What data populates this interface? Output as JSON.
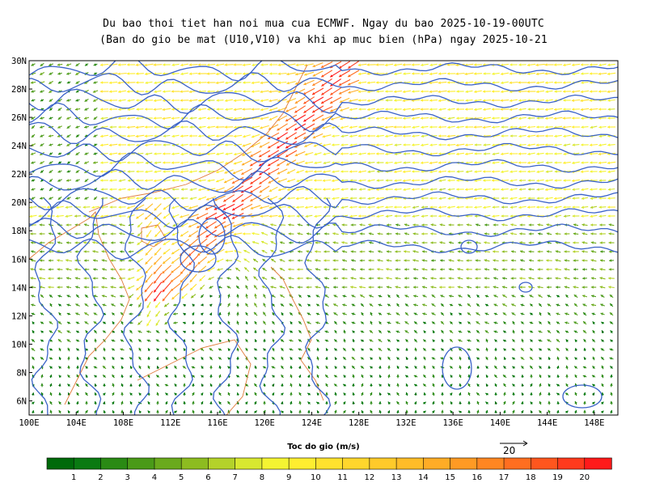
{
  "title_line1": "Du bao thoi tiet han noi mua cua ECMWF. Ngay du bao 2025-10-19-00UTC",
  "title_line2": "(Ban do gio be mat (U10,V10) va khi ap muc bien (hPa) ngay 2025-10-21",
  "map": {
    "lon_range": [
      100,
      150
    ],
    "lat_range": [
      5,
      30
    ],
    "lat_labels": [
      "30N",
      "28N",
      "26N",
      "24N",
      "22N",
      "20N",
      "18N",
      "16N",
      "14N",
      "12N",
      "10N",
      "8N",
      "6N"
    ],
    "lat_values": [
      30,
      28,
      26,
      24,
      22,
      20,
      18,
      16,
      14,
      12,
      10,
      8,
      6
    ],
    "lon_labels": [
      "100E",
      "104E",
      "108E",
      "112E",
      "116E",
      "120E",
      "124E",
      "128E",
      "132E",
      "136E",
      "140E",
      "144E",
      "148E"
    ],
    "lon_values": [
      100,
      104,
      108,
      112,
      116,
      120,
      124,
      128,
      132,
      136,
      140,
      144,
      148
    ],
    "isobar_color": "#3a62c8",
    "coast_color": "#e07a3a"
  },
  "legend": {
    "title": "Toc do gio (m/s)",
    "labels": [
      "1",
      "2",
      "3",
      "4",
      "5",
      "6",
      "7",
      "8",
      "9",
      "10",
      "11",
      "12",
      "13",
      "14",
      "15",
      "16",
      "17",
      "18",
      "19",
      "20"
    ],
    "colors": [
      "#0a7a12",
      "#2a8a14",
      "#4a9a18",
      "#6aaa1c",
      "#8dbc20",
      "#b4d22a",
      "#d8e830",
      "#f4f432",
      "#ffee30",
      "#ffe22e",
      "#ffd62c",
      "#ffca2a",
      "#ffbc28",
      "#ffac26",
      "#ff9a24",
      "#ff8622",
      "#ff6e20",
      "#ff561e",
      "#ff3a1c",
      "#ff1a1a"
    ]
  },
  "reference_vector": {
    "label": "20"
  }
}
